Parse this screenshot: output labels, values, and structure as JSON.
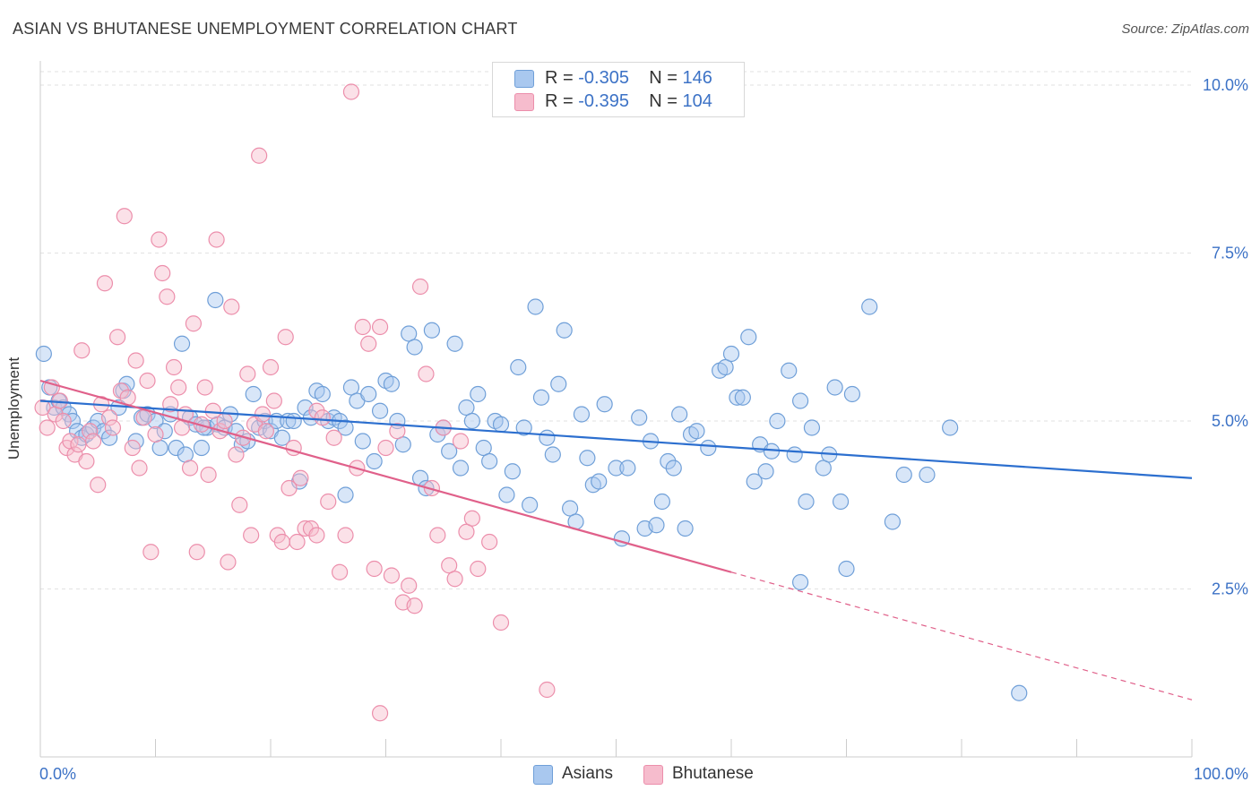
{
  "title": "ASIAN VS BHUTANESE UNEMPLOYMENT CORRELATION CHART",
  "source": "Source: ZipAtlas.com",
  "legend": [
    {
      "r_label": "R =",
      "r_value": "-0.305",
      "n_label": "N =",
      "n_value": "146"
    },
    {
      "r_label": "R =",
      "r_value": "-0.395",
      "n_label": "N =",
      "n_value": "104"
    }
  ],
  "bottom_legend": [
    "Asians",
    "Bhutanese"
  ],
  "colors": {
    "asians_fill": "#a9c8ef",
    "asians_stroke": "#6f9fd8",
    "asians_line": "#2c6fcf",
    "bhutanese_fill": "#f6bccd",
    "bhutanese_stroke": "#ec8eab",
    "bhutanese_line": "#e0608a",
    "axis_label": "#3c72c6",
    "grid": "#e2e2e2"
  },
  "chart_data": {
    "type": "scatter",
    "title": "ASIAN VS BHUTANESE UNEMPLOYMENT CORRELATION CHART",
    "xlabel": "",
    "ylabel": "Unemployment",
    "xlim": [
      0,
      100
    ],
    "ylim": [
      0,
      10.2
    ],
    "x_tick_labels": [
      "0.0%",
      "100.0%"
    ],
    "y_ticks": [
      2.5,
      5.0,
      7.5,
      10.0
    ],
    "y_tick_labels": [
      "2.5%",
      "5.0%",
      "7.5%",
      "10.0%"
    ],
    "grid": true,
    "legend_position": "top-center",
    "series": [
      {
        "name": "Asians",
        "color": "#6f9fd8",
        "trend": {
          "x": [
            0,
            100
          ],
          "y": [
            5.3,
            4.15
          ],
          "dashed_from": null
        },
        "points": [
          [
            0.3,
            6.0
          ],
          [
            0.8,
            5.5
          ],
          [
            1.2,
            5.2
          ],
          [
            1.6,
            5.3
          ],
          [
            2.0,
            5.2
          ],
          [
            2.5,
            5.1
          ],
          [
            2.8,
            5.0
          ],
          [
            3.2,
            4.85
          ],
          [
            3.6,
            4.75
          ],
          [
            4.0,
            4.8
          ],
          [
            4.6,
            4.9
          ],
          [
            5.0,
            5.0
          ],
          [
            5.5,
            4.85
          ],
          [
            6.0,
            4.75
          ],
          [
            6.8,
            5.2
          ],
          [
            7.2,
            5.45
          ],
          [
            7.5,
            5.55
          ],
          [
            8.3,
            4.7
          ],
          [
            8.8,
            5.05
          ],
          [
            9.3,
            5.1
          ],
          [
            10.0,
            5.0
          ],
          [
            10.4,
            4.6
          ],
          [
            10.8,
            4.85
          ],
          [
            11.3,
            5.1
          ],
          [
            11.8,
            4.6
          ],
          [
            12.3,
            6.15
          ],
          [
            12.6,
            4.5
          ],
          [
            13.0,
            5.05
          ],
          [
            13.5,
            4.95
          ],
          [
            14.0,
            4.6
          ],
          [
            14.5,
            4.9
          ],
          [
            14.2,
            4.9
          ],
          [
            15.2,
            6.8
          ],
          [
            15.4,
            4.95
          ],
          [
            16.0,
            4.9
          ],
          [
            16.5,
            5.1
          ],
          [
            17.0,
            4.85
          ],
          [
            17.5,
            4.65
          ],
          [
            18.0,
            4.7
          ],
          [
            18.5,
            5.4
          ],
          [
            19.0,
            4.9
          ],
          [
            19.5,
            5.0
          ],
          [
            20.0,
            4.85
          ],
          [
            20.5,
            5.0
          ],
          [
            21.0,
            4.75
          ],
          [
            21.5,
            5.0
          ],
          [
            22.0,
            5.0
          ],
          [
            22.5,
            4.1
          ],
          [
            23.0,
            5.2
          ],
          [
            23.5,
            5.05
          ],
          [
            24.0,
            5.45
          ],
          [
            24.5,
            5.4
          ],
          [
            25.0,
            5.0
          ],
          [
            25.5,
            5.05
          ],
          [
            26.0,
            5.0
          ],
          [
            26.5,
            4.9
          ],
          [
            27.0,
            5.5
          ],
          [
            27.5,
            5.3
          ],
          [
            28.0,
            4.7
          ],
          [
            28.5,
            5.4
          ],
          [
            29.0,
            4.4
          ],
          [
            29.5,
            5.15
          ],
          [
            30.0,
            5.6
          ],
          [
            30.5,
            5.55
          ],
          [
            31.0,
            5.0
          ],
          [
            31.5,
            4.65
          ],
          [
            32.0,
            6.3
          ],
          [
            32.5,
            6.1
          ],
          [
            33.0,
            4.15
          ],
          [
            33.5,
            4.0
          ],
          [
            34.0,
            6.35
          ],
          [
            34.5,
            4.8
          ],
          [
            35.0,
            4.9
          ],
          [
            35.5,
            4.55
          ],
          [
            36.0,
            6.15
          ],
          [
            36.5,
            4.3
          ],
          [
            37.0,
            5.2
          ],
          [
            37.5,
            5.0
          ],
          [
            38.0,
            5.4
          ],
          [
            38.5,
            4.6
          ],
          [
            39.0,
            4.4
          ],
          [
            39.5,
            5.0
          ],
          [
            40.0,
            4.95
          ],
          [
            40.5,
            3.9
          ],
          [
            41.0,
            4.25
          ],
          [
            41.5,
            5.8
          ],
          [
            42.0,
            4.9
          ],
          [
            42.5,
            3.75
          ],
          [
            43.0,
            6.7
          ],
          [
            43.5,
            5.35
          ],
          [
            44.0,
            4.75
          ],
          [
            44.5,
            4.5
          ],
          [
            45.0,
            5.55
          ],
          [
            45.5,
            6.35
          ],
          [
            46.0,
            3.7
          ],
          [
            46.5,
            3.5
          ],
          [
            47.0,
            5.1
          ],
          [
            47.5,
            4.45
          ],
          [
            48.0,
            4.05
          ],
          [
            48.5,
            4.1
          ],
          [
            49.0,
            5.25
          ],
          [
            50.0,
            4.3
          ],
          [
            50.5,
            3.25
          ],
          [
            51.0,
            4.3
          ],
          [
            52.0,
            5.05
          ],
          [
            52.5,
            3.4
          ],
          [
            53.0,
            4.7
          ],
          [
            53.5,
            3.45
          ],
          [
            54.0,
            3.8
          ],
          [
            54.5,
            4.4
          ],
          [
            55.0,
            4.3
          ],
          [
            55.5,
            5.1
          ],
          [
            56.0,
            3.4
          ],
          [
            56.5,
            4.8
          ],
          [
            57.0,
            4.85
          ],
          [
            58.0,
            4.6
          ],
          [
            59.0,
            5.75
          ],
          [
            59.5,
            5.8
          ],
          [
            60.0,
            6.0
          ],
          [
            60.5,
            5.35
          ],
          [
            61.0,
            5.35
          ],
          [
            61.5,
            6.25
          ],
          [
            62.0,
            4.1
          ],
          [
            62.5,
            4.65
          ],
          [
            63.0,
            4.25
          ],
          [
            63.5,
            4.55
          ],
          [
            64.0,
            5.0
          ],
          [
            65.0,
            5.75
          ],
          [
            65.5,
            4.5
          ],
          [
            66.0,
            5.3
          ],
          [
            66.5,
            3.8
          ],
          [
            67.0,
            4.9
          ],
          [
            68.0,
            4.3
          ],
          [
            68.5,
            4.5
          ],
          [
            69.0,
            5.5
          ],
          [
            69.5,
            3.8
          ],
          [
            70.0,
            2.8
          ],
          [
            70.5,
            5.4
          ],
          [
            72.0,
            6.7
          ],
          [
            74.0,
            3.5
          ],
          [
            75.0,
            4.2
          ],
          [
            77.0,
            4.2
          ],
          [
            79.0,
            4.9
          ],
          [
            85.0,
            0.95
          ],
          [
            66.0,
            2.6
          ],
          [
            26.5,
            3.9
          ]
        ]
      },
      {
        "name": "Bhutanese",
        "color": "#ec8eab",
        "trend": {
          "x": [
            0,
            100
          ],
          "y": [
            5.6,
            0.85
          ],
          "solid_until_x": 60
        },
        "points": [
          [
            0.2,
            5.2
          ],
          [
            0.6,
            4.9
          ],
          [
            1.0,
            5.5
          ],
          [
            1.3,
            5.1
          ],
          [
            1.7,
            5.3
          ],
          [
            2.0,
            5.0
          ],
          [
            2.3,
            4.6
          ],
          [
            2.6,
            4.7
          ],
          [
            3.0,
            4.5
          ],
          [
            3.3,
            4.65
          ],
          [
            3.6,
            6.05
          ],
          [
            4.0,
            4.4
          ],
          [
            4.3,
            4.85
          ],
          [
            4.6,
            4.7
          ],
          [
            5.0,
            4.05
          ],
          [
            5.3,
            5.25
          ],
          [
            5.6,
            7.05
          ],
          [
            6.0,
            5.05
          ],
          [
            6.3,
            4.9
          ],
          [
            6.7,
            6.25
          ],
          [
            7.0,
            5.45
          ],
          [
            7.3,
            8.05
          ],
          [
            7.6,
            5.35
          ],
          [
            8.0,
            4.6
          ],
          [
            8.3,
            5.9
          ],
          [
            8.6,
            4.3
          ],
          [
            9.0,
            5.05
          ],
          [
            9.3,
            5.6
          ],
          [
            9.6,
            3.05
          ],
          [
            10.0,
            4.8
          ],
          [
            10.3,
            7.7
          ],
          [
            10.6,
            7.2
          ],
          [
            11.0,
            6.85
          ],
          [
            11.3,
            5.25
          ],
          [
            11.6,
            5.8
          ],
          [
            12.0,
            5.5
          ],
          [
            12.3,
            4.9
          ],
          [
            12.6,
            5.1
          ],
          [
            13.0,
            4.3
          ],
          [
            13.3,
            6.45
          ],
          [
            13.6,
            3.05
          ],
          [
            14.0,
            4.95
          ],
          [
            14.3,
            5.5
          ],
          [
            14.6,
            4.2
          ],
          [
            15.0,
            5.15
          ],
          [
            15.3,
            7.7
          ],
          [
            15.6,
            4.85
          ],
          [
            16.0,
            5.0
          ],
          [
            16.3,
            2.9
          ],
          [
            16.6,
            6.7
          ],
          [
            17.0,
            4.5
          ],
          [
            17.3,
            3.75
          ],
          [
            17.6,
            4.75
          ],
          [
            18.0,
            5.7
          ],
          [
            18.3,
            3.3
          ],
          [
            18.6,
            4.95
          ],
          [
            19.0,
            8.95
          ],
          [
            19.3,
            5.1
          ],
          [
            19.6,
            4.85
          ],
          [
            20.0,
            5.8
          ],
          [
            20.3,
            5.3
          ],
          [
            20.6,
            3.3
          ],
          [
            21.0,
            3.2
          ],
          [
            21.3,
            6.25
          ],
          [
            21.6,
            4.0
          ],
          [
            22.0,
            4.6
          ],
          [
            22.3,
            3.2
          ],
          [
            22.6,
            4.15
          ],
          [
            23.0,
            3.4
          ],
          [
            23.5,
            3.4
          ],
          [
            24.0,
            5.15
          ],
          [
            24.5,
            5.05
          ],
          [
            25.0,
            3.8
          ],
          [
            25.5,
            4.75
          ],
          [
            26.0,
            2.75
          ],
          [
            26.5,
            3.3
          ],
          [
            27.0,
            9.9
          ],
          [
            27.5,
            4.3
          ],
          [
            28.0,
            6.4
          ],
          [
            28.5,
            6.15
          ],
          [
            29.0,
            2.8
          ],
          [
            29.5,
            6.4
          ],
          [
            30.0,
            4.6
          ],
          [
            30.5,
            2.7
          ],
          [
            31.0,
            4.85
          ],
          [
            31.5,
            2.3
          ],
          [
            32.0,
            2.55
          ],
          [
            32.5,
            2.25
          ],
          [
            33.0,
            7.0
          ],
          [
            33.5,
            5.7
          ],
          [
            34.0,
            4.0
          ],
          [
            34.5,
            3.3
          ],
          [
            35.0,
            4.9
          ],
          [
            35.5,
            2.85
          ],
          [
            36.0,
            2.65
          ],
          [
            36.5,
            4.7
          ],
          [
            37.0,
            3.35
          ],
          [
            37.5,
            3.55
          ],
          [
            38.0,
            2.8
          ],
          [
            39.0,
            3.2
          ],
          [
            40.0,
            2.0
          ],
          [
            44.0,
            1.0
          ],
          [
            29.5,
            0.65
          ],
          [
            24.0,
            3.3
          ]
        ]
      }
    ]
  }
}
